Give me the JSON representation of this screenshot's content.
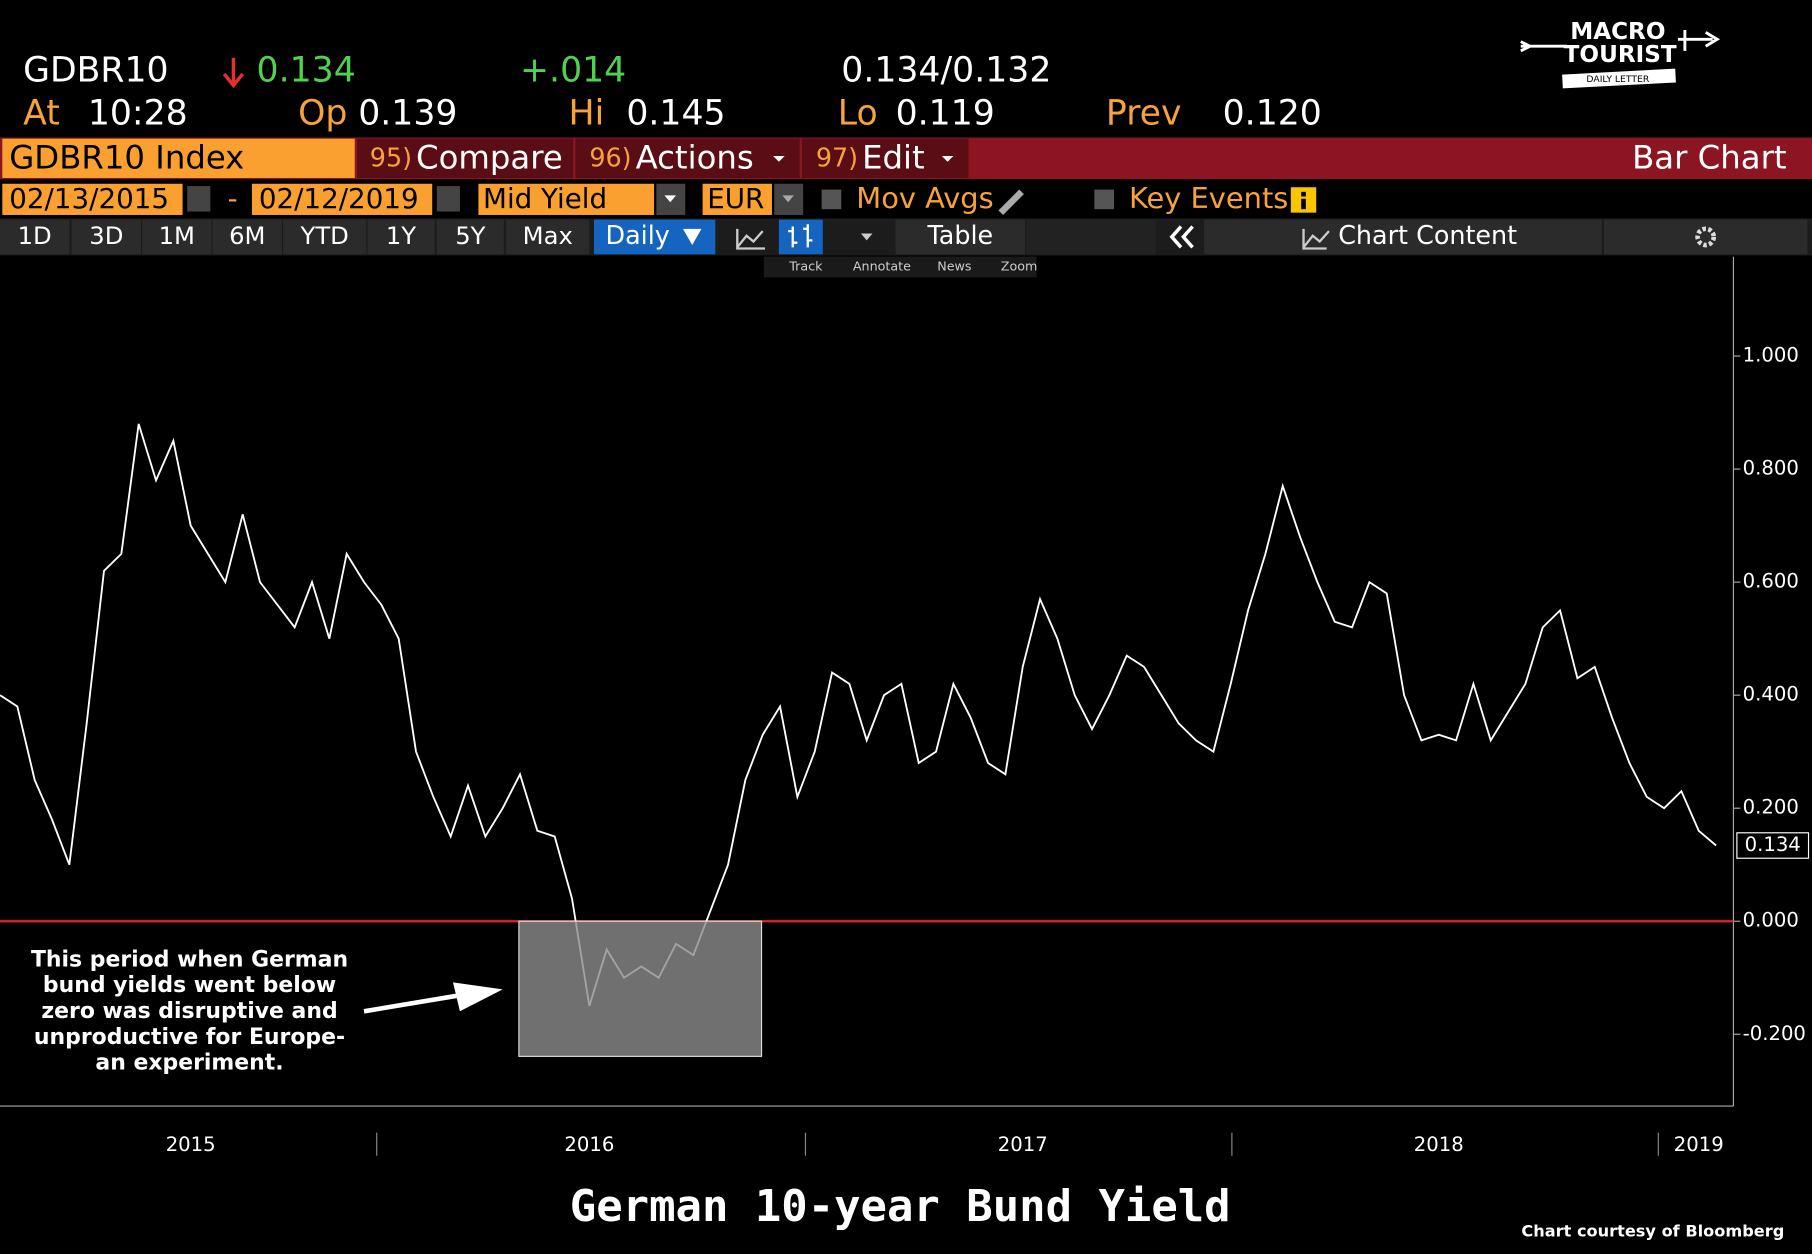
{
  "header": {
    "ticker": "GDBR10",
    "last": "0.134",
    "change": "+.014",
    "bid_ask": "0.134/0.132",
    "at_label": "At",
    "time": "10:28",
    "open_label": "Op",
    "open": "0.139",
    "high_label": "Hi",
    "high": "0.145",
    "low_label": "Lo",
    "low": "0.119",
    "prev_label": "Prev",
    "prev": "0.120"
  },
  "logo": {
    "line1": "MACRO",
    "line2": "TOURIST",
    "line3": "DAILY LETTER"
  },
  "menu": {
    "security": "GDBR10 Index",
    "compare_num": "95)",
    "compare": "Compare",
    "actions_num": "96)",
    "actions": "Actions",
    "edit_num": "97)",
    "edit": "Edit",
    "view": "Bar Chart"
  },
  "options": {
    "start": "02/13/2015",
    "dash": "-",
    "end": "02/12/2019",
    "field": "Mid Yield",
    "currency": "EUR",
    "mov_avgs": "Mov Avgs",
    "key_events": "Key Events"
  },
  "toolbar": {
    "ranges": [
      "1D",
      "3D",
      "1M",
      "6M",
      "YTD",
      "1Y",
      "5Y",
      "Max"
    ],
    "period": "Daily",
    "table": "Table",
    "chart_content": "Chart Content",
    "tools": [
      "Track",
      "Annotate",
      "News",
      "Zoom"
    ]
  },
  "chart_data": {
    "type": "line",
    "title": "German 10-year Bund Yield",
    "credit": "Chart courtesy of Bloomberg",
    "annotation": [
      "This period when German",
      "bund yields went below",
      "zero was disruptive and",
      "unproductive for Europe-",
      "an experiment."
    ],
    "color": "#ffffff",
    "categories": [
      null,
      null,
      null,
      null,
      null,
      null,
      null,
      null,
      null,
      null,
      null,
      "2015",
      null,
      null,
      null,
      null,
      null,
      null,
      null,
      null,
      null,
      null,
      null,
      null,
      null,
      null,
      null,
      null,
      null,
      null,
      null,
      null,
      null,
      null,
      "2016",
      null,
      null,
      null,
      null,
      null,
      null,
      null,
      null,
      null,
      null,
      null,
      null,
      null,
      null,
      null,
      null,
      null,
      null,
      null,
      null,
      null,
      null,
      null,
      null,
      "2017",
      null,
      null,
      null,
      null,
      null,
      null,
      null,
      null,
      null,
      null,
      null,
      null,
      null,
      null,
      null,
      null,
      null,
      null,
      null,
      null,
      null,
      null,
      null,
      "2018",
      null,
      null,
      null,
      null,
      null,
      null,
      null,
      null,
      null,
      null,
      null,
      null,
      null,
      null,
      "2019",
      null
    ],
    "values": [
      0.4,
      0.38,
      0.25,
      0.18,
      0.1,
      0.35,
      0.62,
      0.65,
      0.88,
      0.78,
      0.85,
      0.7,
      0.65,
      0.6,
      0.72,
      0.6,
      0.56,
      0.52,
      0.6,
      0.5,
      0.65,
      0.6,
      0.56,
      0.5,
      0.3,
      0.22,
      0.15,
      0.24,
      0.15,
      0.2,
      0.26,
      0.16,
      0.15,
      0.04,
      -0.15,
      -0.05,
      -0.1,
      -0.08,
      -0.1,
      -0.04,
      -0.06,
      0.02,
      0.1,
      0.25,
      0.33,
      0.38,
      0.22,
      0.3,
      0.44,
      0.42,
      0.32,
      0.4,
      0.42,
      0.28,
      0.3,
      0.42,
      0.36,
      0.28,
      0.26,
      0.45,
      0.57,
      0.5,
      0.4,
      0.34,
      0.4,
      0.47,
      0.45,
      0.4,
      0.35,
      0.32,
      0.3,
      0.42,
      0.55,
      0.65,
      0.77,
      0.68,
      0.6,
      0.53,
      0.52,
      0.6,
      0.58,
      0.4,
      0.32,
      0.33,
      0.32,
      0.42,
      0.32,
      0.37,
      0.42,
      0.52,
      0.55,
      0.43,
      0.45,
      0.36,
      0.28,
      0.22,
      0.2,
      0.23,
      0.16,
      0.134
    ],
    "ylim": [
      -0.327,
      1.176
    ],
    "yticks": [
      {
        "value": 1.0,
        "label": "1.000"
      },
      {
        "value": 0.8,
        "label": "0.800"
      },
      {
        "value": 0.6,
        "label": "0.600"
      },
      {
        "value": 0.4,
        "label": "0.400"
      },
      {
        "value": 0.2,
        "label": "0.200"
      },
      {
        "value": 0,
        "label": "0.000"
      },
      {
        "value": -0.2,
        "label": "-0.200"
      }
    ],
    "zero_line_color": "#e8202a"
  }
}
